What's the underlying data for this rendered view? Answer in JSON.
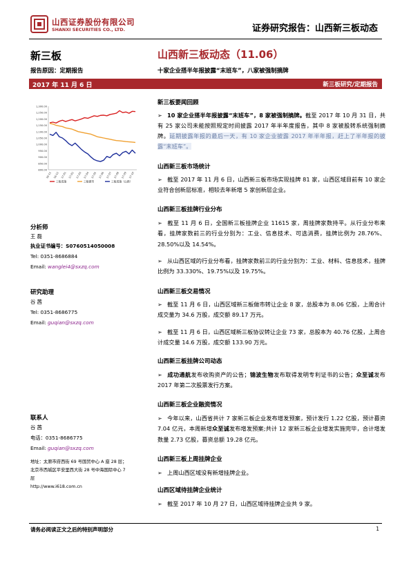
{
  "header": {
    "company_cn": "山西证券股份有限公司",
    "company_en": "SHANXI SECURITIES CO., LTD.",
    "doc_type": "证券研究报告：山西新三板动态",
    "logo_color": "#a8282c"
  },
  "left": {
    "section_title": "新三板",
    "report_reason": "报告原因：定期报告",
    "date": "2017 年 11 月 6 日"
  },
  "title": {
    "main": "山西新三板动态（11.06）",
    "sub": "十家企业搭半年报披露“末班车”，八家被强制摘牌",
    "category": "新三板研究/定期报告"
  },
  "chart_data": {
    "type": "line",
    "y_ticks": [
      "1,300.00",
      "1,250.00",
      "1,200.00",
      "1,150.00",
      "1,100.00",
      "1,050.00",
      "1,000.00",
      "950.00",
      "900.00",
      "850.00",
      "800.00"
    ],
    "ylim": [
      800,
      1300
    ],
    "x_ticks": [
      "16-11",
      "16-12",
      "17-01",
      "17-02",
      "17-03",
      "17-04",
      "17-05",
      "17-06",
      "17-07",
      "17-08",
      "17-09",
      "17-10"
    ],
    "series": [
      {
        "name": "三板成指",
        "color": "#d81e1e",
        "values": [
          1170,
          1175,
          1168,
          1182,
          1190,
          1180,
          1188,
          1195,
          1185,
          1192,
          1200,
          1210,
          1205,
          1215,
          1225,
          1220,
          1228,
          1230,
          1225,
          1235,
          1240,
          1245,
          1265,
          1250,
          1255,
          1245,
          1260,
          1258
        ]
      },
      {
        "name": "三板做市",
        "color": "#f0a030",
        "values": [
          1165,
          1160,
          1150,
          1145,
          1140,
          1130,
          1125,
          1120,
          1110,
          1100,
          1095,
          1090,
          1085,
          1080,
          1070,
          1060,
          1055,
          1050,
          1045,
          1040,
          1035,
          1030,
          1028,
          1025,
          1022,
          1020,
          1018,
          1015
        ]
      },
      {
        "name": "三板成指（山西）",
        "color": "#1b2d9a",
        "values": [
          1080,
          1070,
          1095,
          1060,
          1050,
          1030,
          1005,
          990,
          1010,
          985,
          960,
          940,
          925,
          900,
          880,
          870,
          865,
          875,
          905,
          895,
          920,
          930,
          910,
          935,
          945,
          925,
          955,
          930
        ]
      }
    ]
  },
  "analyst": {
    "heading": "分析师",
    "name": "王  磊",
    "cert_label": "执业证书编号：",
    "cert_no": "S0760514050008",
    "tel": "Tel: 0351-8686884",
    "email_label": "Email: ",
    "email": "wanglei4@sxzq.com"
  },
  "assistant": {
    "heading": "研究助理",
    "name": "谷  茜",
    "tel": "Tel: 0351-8686775",
    "email_label": "Email: ",
    "email": "guqian@sxzq.com"
  },
  "contact": {
    "heading": "联系人",
    "name": "谷  茜",
    "tel": "电话：0351-8686775",
    "email_label": "Email: ",
    "email": "guqian@sxzq.com"
  },
  "address": {
    "line1": "地址：太原市府西街 69 号国贸中心 A 座 28 层；",
    "line2": "北京市西城区平安里西大街 28 号中海国际中心 7",
    "line3": "层",
    "web": "http://www.i618.com.cn"
  },
  "sections": {
    "news_heading": "新三板要闻回顾",
    "news_bold": "10 家企业搭半年报披露“末班车”，8 家被强制摘牌。",
    "news_text": "截至 2017 年 10 月 31 日，共有 25 家公司未能按照规定时间披露 2017 年半年度报告，其中 8 家被股转系统强制摘牌。",
    "news_highlight": "延期披露年报的最后一天，有 10 家企业披露 2017 年半年报，赶上了半年报的披露“末班车”。",
    "market_heading": "山西新三板市场统计",
    "market_text": "截至 2017 年 11 月 6 日，山西新三板市场实现挂牌 81 家，山西区域目前有 10 家企业符合创新层标准，相较去年新增 5 家创新层企业。",
    "industry_heading": "山西新三板挂牌行业分布",
    "industry_text1": "截至 11 月 6 日，全国新三板挂牌企业 11615 家，周挂牌家数持平。从行业分布来看，挂牌家数前三的行业分别为：工业、信息技术、可选消费，挂牌比例为 28.76%、28.50%以及 14.54%。",
    "industry_text2": "从山西区域的行业分布看，挂牌家数前三的行业分别为：工业、材料、信息技术，挂牌比例为 33.330%、19.75%以及 19.75%。",
    "trade_heading": "山西新三板交易情况",
    "trade_text1": "截至 11 月 6 日，山西区域新三板做市转让企业 8 家，总股本为 8.06 亿股，上周合计成交量为 34.6 万股，成交额 89.17 万元。",
    "trade_text2": "截至 11 月 6 日，山西区域新三板协议转让企业 73 家，总股本为 40.76 亿股，上周合计成交量 14.6 万股，成交额 133.90 万元。",
    "dynamics_heading": "山西新三板挂牌公司动态",
    "dyn_b1": "成功通航",
    "dyn_t1": "发布收购资产的公告；",
    "dyn_b2": "锦波生物",
    "dyn_t2": "发布取得发明专利证书的公告；",
    "dyn_b3": "众至诚",
    "dyn_t3": "发布 2017 年第二次股票发行方案。",
    "finance_heading": "山西新三板企业融资情况",
    "fin_t1": "今年以来，山西省共计 7 家新三板企业发布增发预案，预计发行 1.22 亿股，预计募资 7.04 亿元，本周新增",
    "fin_b1": "众至诚",
    "fin_t2": "发布增发预案;共计 12 家新三板企业增发实施完毕，合计增发数量 2.73 亿股，募资总额 19.28 亿元。",
    "listing_heading": "山西新三板上周挂牌企业",
    "listing_text": "上周山西区域没有新增挂牌企业。",
    "pending_heading": "山西区域待挂牌企业统计",
    "pending_text": "截至 2017 年 10 月 27 日，山西区域待挂牌企业共 9 家。"
  },
  "footer": {
    "note": "请务必阅读正文之后的特别声明部分",
    "page": "1"
  }
}
